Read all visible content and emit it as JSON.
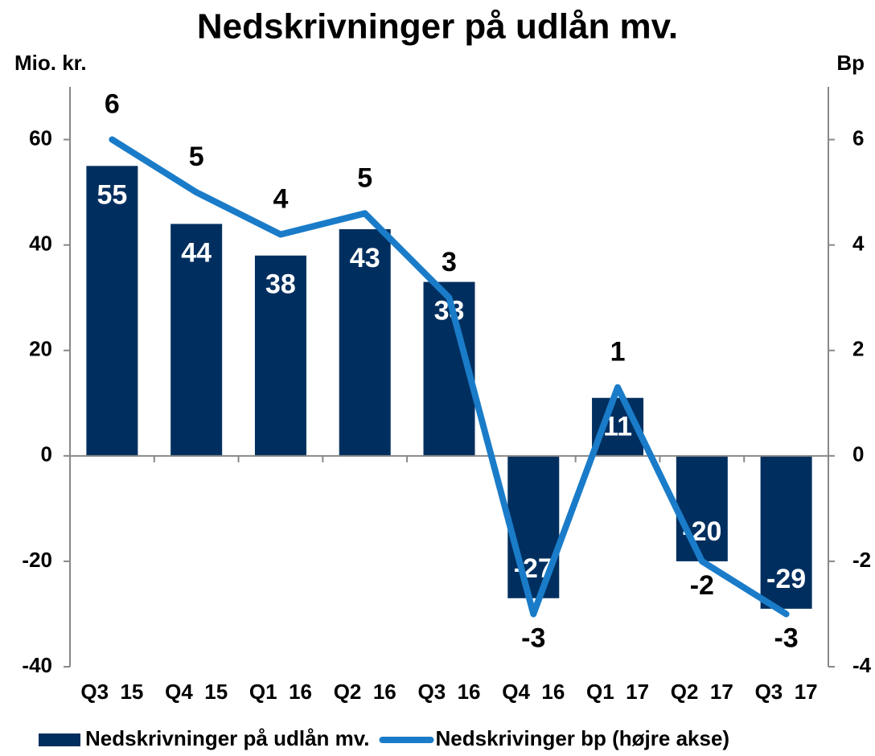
{
  "chart_data": {
    "type": "bar_line",
    "title": "Nedskrivninger på udlån mv.",
    "y_label": "Mio. kr.",
    "y2_label": "Bp",
    "categories": [
      "Q3  15",
      "Q4  15",
      "Q1  16",
      "Q2  16",
      "Q3  16",
      "Q4  16",
      "Q1  17",
      "Q2  17",
      "Q3  17"
    ],
    "series": [
      {
        "name": "Nedskrivninger på udlån mv.",
        "type": "bar",
        "color": "#002f5f",
        "values": [
          55,
          44,
          38,
          43,
          33,
          -27,
          11,
          -20,
          -29
        ]
      },
      {
        "name": "Nedskrivinger bp (højre akse)",
        "type": "line",
        "color": "#1a7cc9",
        "axis": "y2",
        "values": [
          6,
          5,
          4.2,
          4.6,
          3,
          -3,
          1.3,
          -2,
          -3
        ],
        "value_labels": [
          "6",
          "5",
          "4",
          "5",
          "3",
          "-3",
          "1",
          "-2",
          "-3"
        ]
      }
    ],
    "ylim": [
      -40,
      70
    ],
    "yticks": [
      -40,
      -20,
      0,
      20,
      40,
      60
    ],
    "y2lim": [
      -4,
      7
    ],
    "y2ticks": [
      -4,
      -2,
      0,
      2,
      4,
      6
    ],
    "grid": false
  }
}
